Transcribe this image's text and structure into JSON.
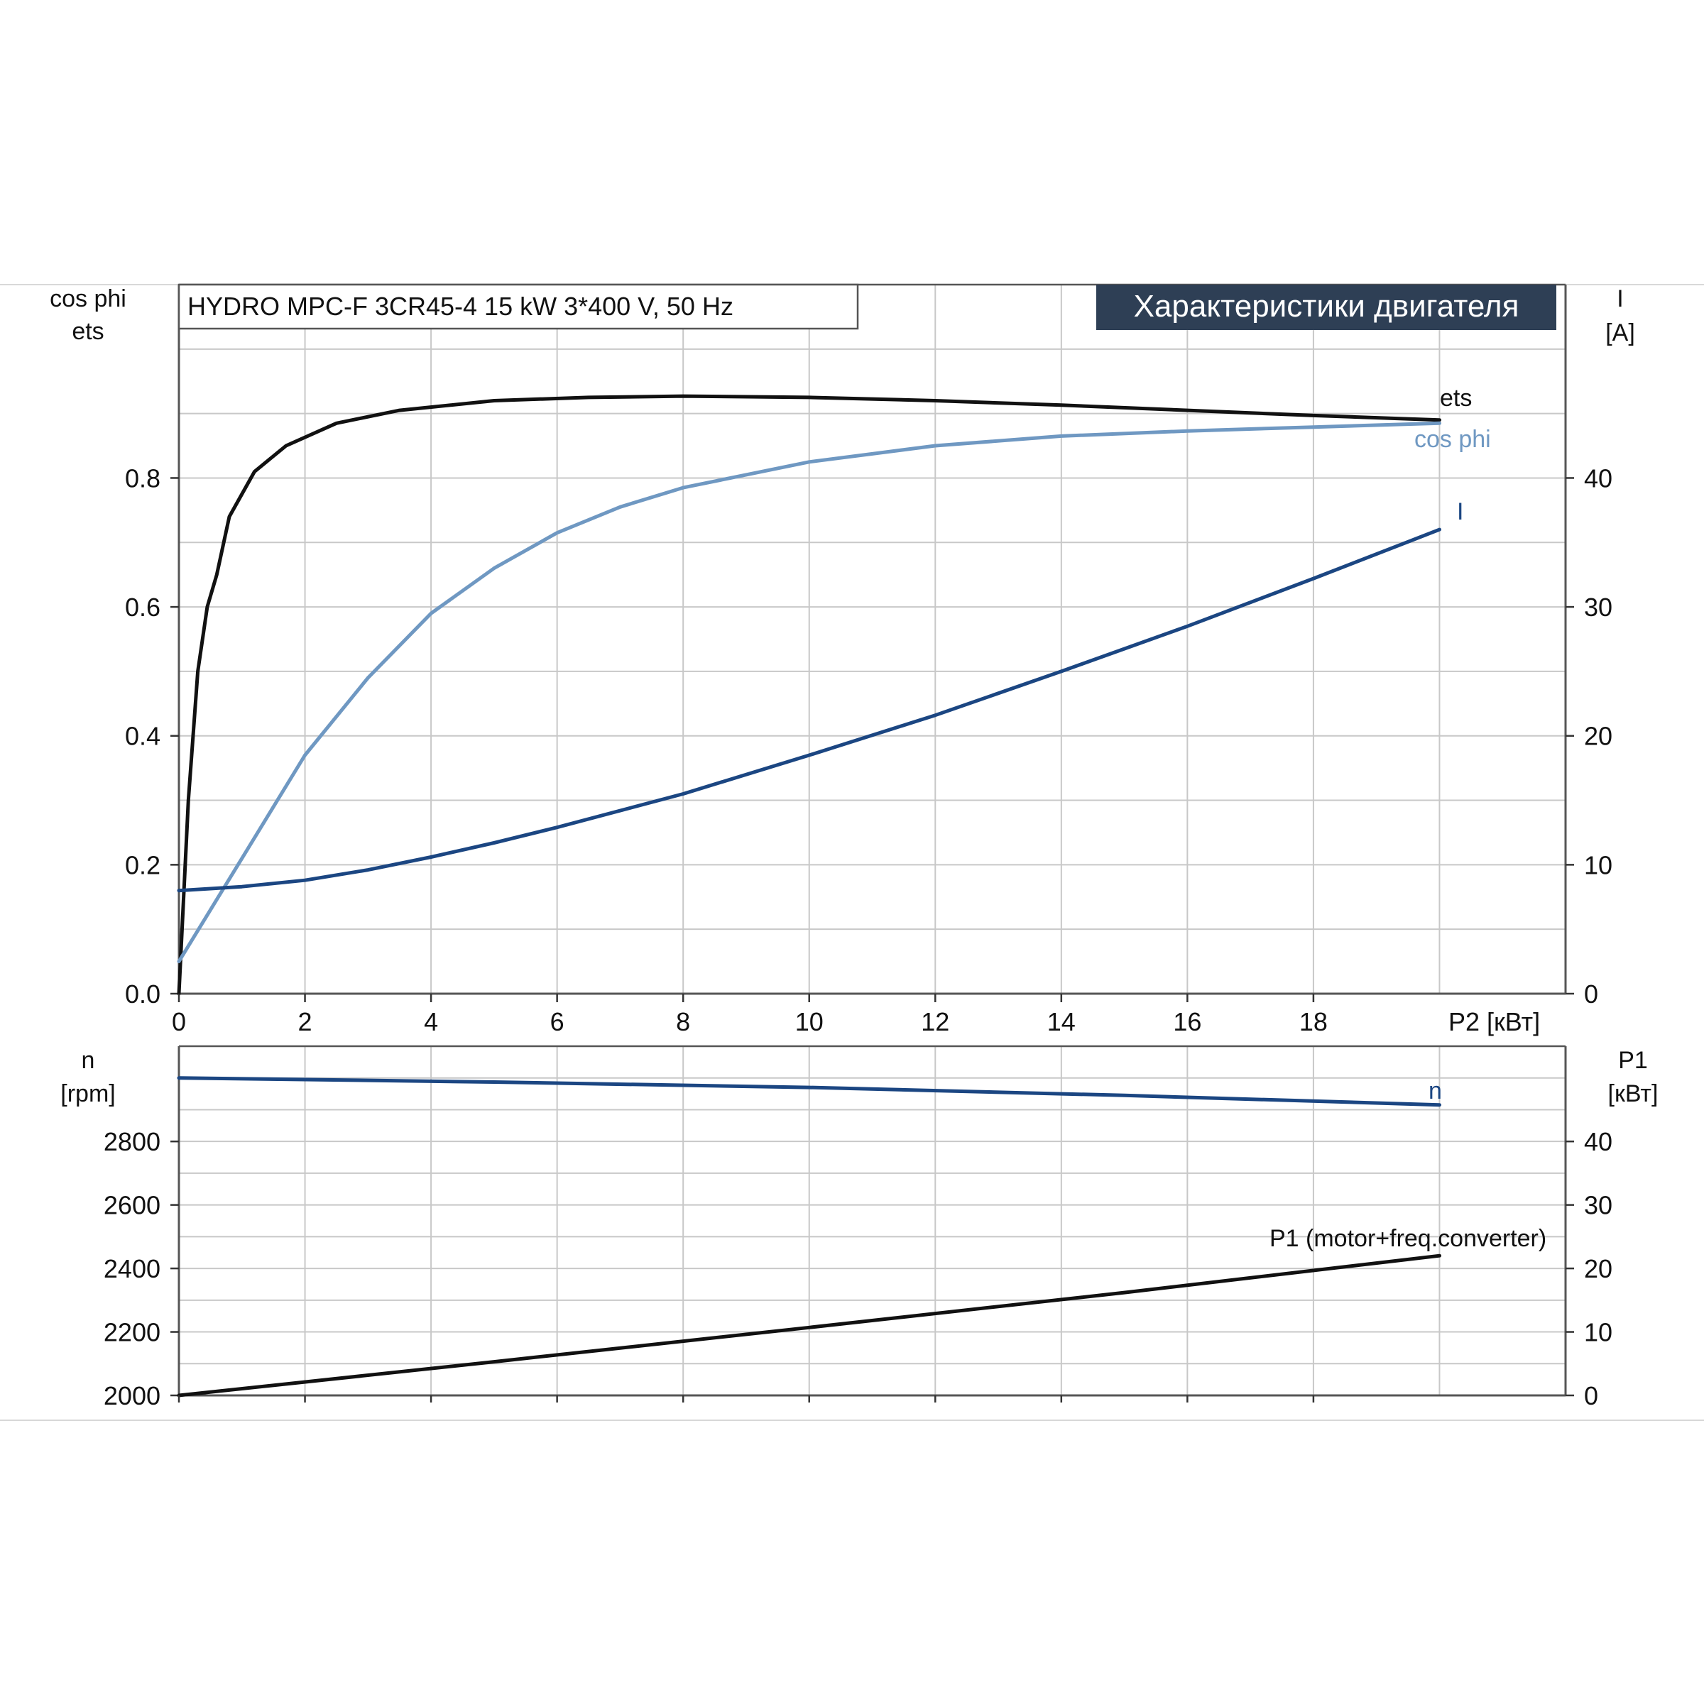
{
  "header_text": "HYDRO MPC-F 3CR45-4   15 kW   3*400 V, 50 Hz",
  "badge_text": "Характеристики двигателя",
  "colors": {
    "black_curve": "#111111",
    "light_blue_curve": "#6f98c2",
    "dark_blue_curve": "#1b4682",
    "badge_bg": "#2e3f55",
    "grid": "#c8c8c8",
    "frame": "#555555"
  },
  "chart_data": [
    {
      "type": "line",
      "x_title": "P2 [кВт]",
      "x_ticks": [
        "0",
        "2",
        "4",
        "6",
        "8",
        "10",
        "12",
        "14",
        "16",
        "18"
      ],
      "xlim": [
        0,
        22
      ],
      "grid": true,
      "y_left": {
        "title_lines": [
          "cos phi",
          "ets"
        ],
        "ticks": [
          "0.0",
          "0.2",
          "0.4",
          "0.6",
          "0.8"
        ],
        "ylim": [
          0,
          1.1
        ]
      },
      "y_right": {
        "title_lines": [
          "I",
          "[A]"
        ],
        "ticks": [
          "0",
          "10",
          "20",
          "30",
          "40"
        ],
        "ylim": [
          0,
          55
        ]
      },
      "series": [
        {
          "name": "ets",
          "axis": "left",
          "color_key": "black_curve",
          "x": [
            0,
            0.15,
            0.3,
            0.45,
            0.6,
            0.8,
            1.2,
            1.7,
            2.5,
            3.5,
            5,
            6.5,
            8,
            10,
            12,
            14,
            16,
            18,
            20
          ],
          "y": [
            0.0,
            0.3,
            0.5,
            0.6,
            0.65,
            0.74,
            0.81,
            0.85,
            0.885,
            0.905,
            0.92,
            0.925,
            0.927,
            0.925,
            0.92,
            0.913,
            0.905,
            0.897,
            0.89
          ]
        },
        {
          "name": "cos phi",
          "axis": "left",
          "color_key": "light_blue_curve",
          "x": [
            0,
            0.5,
            1,
            2,
            3,
            4,
            5,
            6,
            7,
            8,
            10,
            12,
            14,
            16,
            18,
            20
          ],
          "y": [
            0.05,
            0.13,
            0.21,
            0.37,
            0.49,
            0.59,
            0.66,
            0.715,
            0.755,
            0.785,
            0.825,
            0.85,
            0.865,
            0.873,
            0.879,
            0.885
          ]
        },
        {
          "name": "I",
          "axis": "right",
          "color_key": "dark_blue_curve",
          "x": [
            0,
            1,
            2,
            3,
            4,
            5,
            6,
            8,
            10,
            12,
            14,
            16,
            18,
            20
          ],
          "y": [
            8,
            8.3,
            8.8,
            9.6,
            10.6,
            11.7,
            12.9,
            15.5,
            18.5,
            21.6,
            25,
            28.5,
            32.2,
            36
          ]
        }
      ]
    },
    {
      "type": "line",
      "xlim": [
        0,
        22
      ],
      "grid": true,
      "y_left": {
        "title_lines": [
          "n",
          "[rpm]"
        ],
        "ticks": [
          "2000",
          "2200",
          "2400",
          "2600",
          "2800"
        ],
        "ylim": [
          2000,
          3100
        ]
      },
      "y_right": {
        "title_lines": [
          "P1",
          "[кВт]"
        ],
        "ticks": [
          "0",
          "10",
          "20",
          "30",
          "40"
        ],
        "ylim": [
          0,
          55
        ]
      },
      "series": [
        {
          "name": "n",
          "axis": "left",
          "color_key": "dark_blue_curve",
          "x": [
            0,
            5,
            10,
            15,
            20
          ],
          "y": [
            3000,
            2987,
            2970,
            2945,
            2915
          ]
        },
        {
          "name": "P1 (motor+freq.converter)",
          "axis": "right",
          "color_key": "black_curve",
          "x": [
            0,
            5,
            10,
            15,
            20
          ],
          "y": [
            0,
            5.3,
            10.7,
            16.2,
            22
          ]
        }
      ]
    }
  ]
}
